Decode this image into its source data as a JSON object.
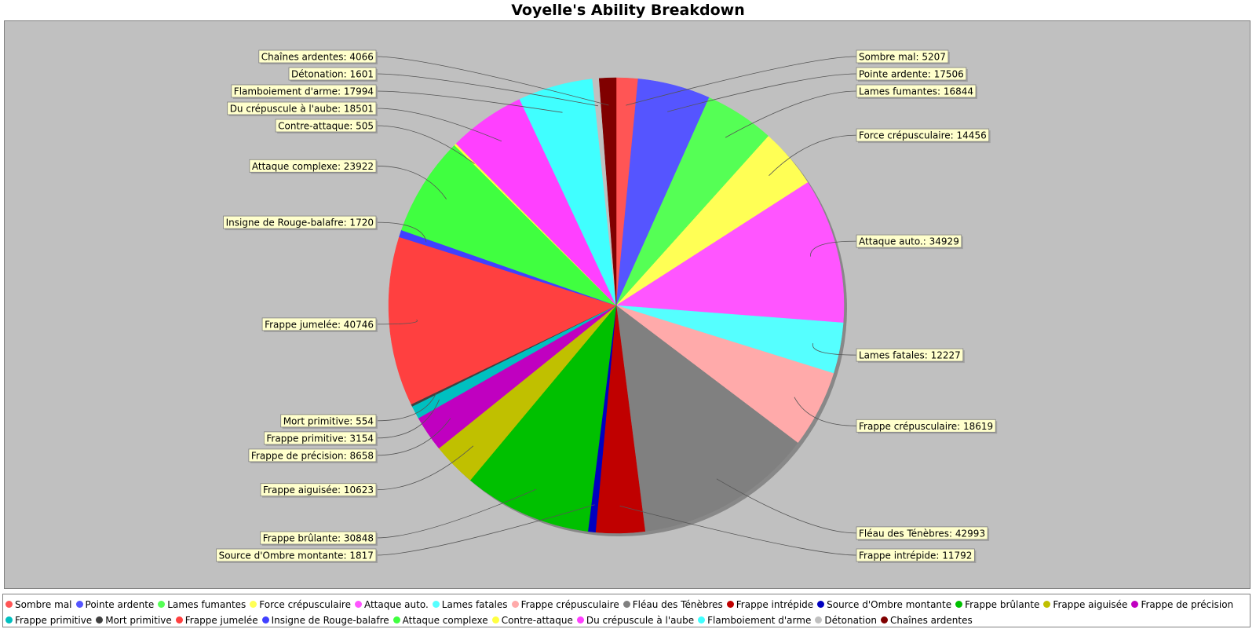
{
  "title": "Voyelle's Ability Breakdown",
  "colors": {
    "plot_background": "#c0c0c0",
    "label_background": "#ffffcc"
  },
  "chart_data": {
    "type": "pie",
    "title": "Voyelle's Ability Breakdown",
    "legend_position": "bottom",
    "slices": [
      {
        "label": "Sombre mal",
        "value": 5207,
        "color": "#ff5555",
        "text": "Sombre mal: 5207"
      },
      {
        "label": "Pointe ardente",
        "value": 17506,
        "color": "#5555ff",
        "text": "Pointe ardente: 17506"
      },
      {
        "label": "Lames fumantes",
        "value": 16844,
        "color": "#55ff55",
        "text": "Lames fumantes: 16844"
      },
      {
        "label": "Force crépusculaire",
        "value": 14456,
        "color": "#ffff55",
        "text": "Force crépusculaire: 14456"
      },
      {
        "label": "Attaque auto.",
        "value": 34929,
        "color": "#ff55ff",
        "text": "Attaque auto.: 34929"
      },
      {
        "label": "Lames fatales",
        "value": 12227,
        "color": "#55ffff",
        "text": "Lames fatales: 12227"
      },
      {
        "label": "Frappe crépusculaire",
        "value": 18619,
        "color": "#ffaaaa",
        "text": "Frappe crépusculaire: 18619"
      },
      {
        "label": "Fléau des Ténèbres",
        "value": 42993,
        "color": "#808080",
        "text": "Fléau des Ténèbres: 42993"
      },
      {
        "label": "Frappe intrépide",
        "value": 11792,
        "color": "#c00000",
        "text": "Frappe intrépide: 11792"
      },
      {
        "label": "Source d'Ombre montante",
        "value": 1817,
        "color": "#0000c0",
        "text": "Source d'Ombre montante: 1817"
      },
      {
        "label": "Frappe brûlante",
        "value": 30848,
        "color": "#00c000",
        "text": "Frappe brûlante: 30848"
      },
      {
        "label": "Frappe aiguisée",
        "value": 10623,
        "color": "#c0c000",
        "text": "Frappe aiguisée: 10623"
      },
      {
        "label": "Frappe de précision",
        "value": 8658,
        "color": "#c000c0",
        "text": "Frappe de précision: 8658"
      },
      {
        "label": "Frappe primitive",
        "value": 3154,
        "color": "#00c0c0",
        "text": "Frappe primitive: 3154"
      },
      {
        "label": "Mort primitive",
        "value": 554,
        "color": "#404040",
        "text": "Mort primitive: 554"
      },
      {
        "label": "Frappe jumelée",
        "value": 40746,
        "color": "#ff4040",
        "text": "Frappe jumelée: 40746"
      },
      {
        "label": "Insigne de Rouge-balafre",
        "value": 1720,
        "color": "#4040ff",
        "text": "Insigne de Rouge-balafre: 1720"
      },
      {
        "label": "Attaque complexe",
        "value": 23922,
        "color": "#40ff40",
        "text": "Attaque complexe: 23922"
      },
      {
        "label": "Contre-attaque",
        "value": 505,
        "color": "#ffff40",
        "text": "Contre-attaque: 505"
      },
      {
        "label": "Du crépuscule à l'aube",
        "value": 18501,
        "color": "#ff40ff",
        "text": "Du crépuscule à l'aube: 18501"
      },
      {
        "label": "Flamboiement d'arme",
        "value": 17994,
        "color": "#40ffff",
        "text": "Flamboiement d'arme: 17994"
      },
      {
        "label": "Détonation",
        "value": 1601,
        "color": "#c0c0c0",
        "text": "Détonation: 1601"
      },
      {
        "label": "Chaînes ardentes",
        "value": 4066,
        "color": "#800000",
        "text": "Chaînes ardentes: 4066"
      }
    ]
  }
}
